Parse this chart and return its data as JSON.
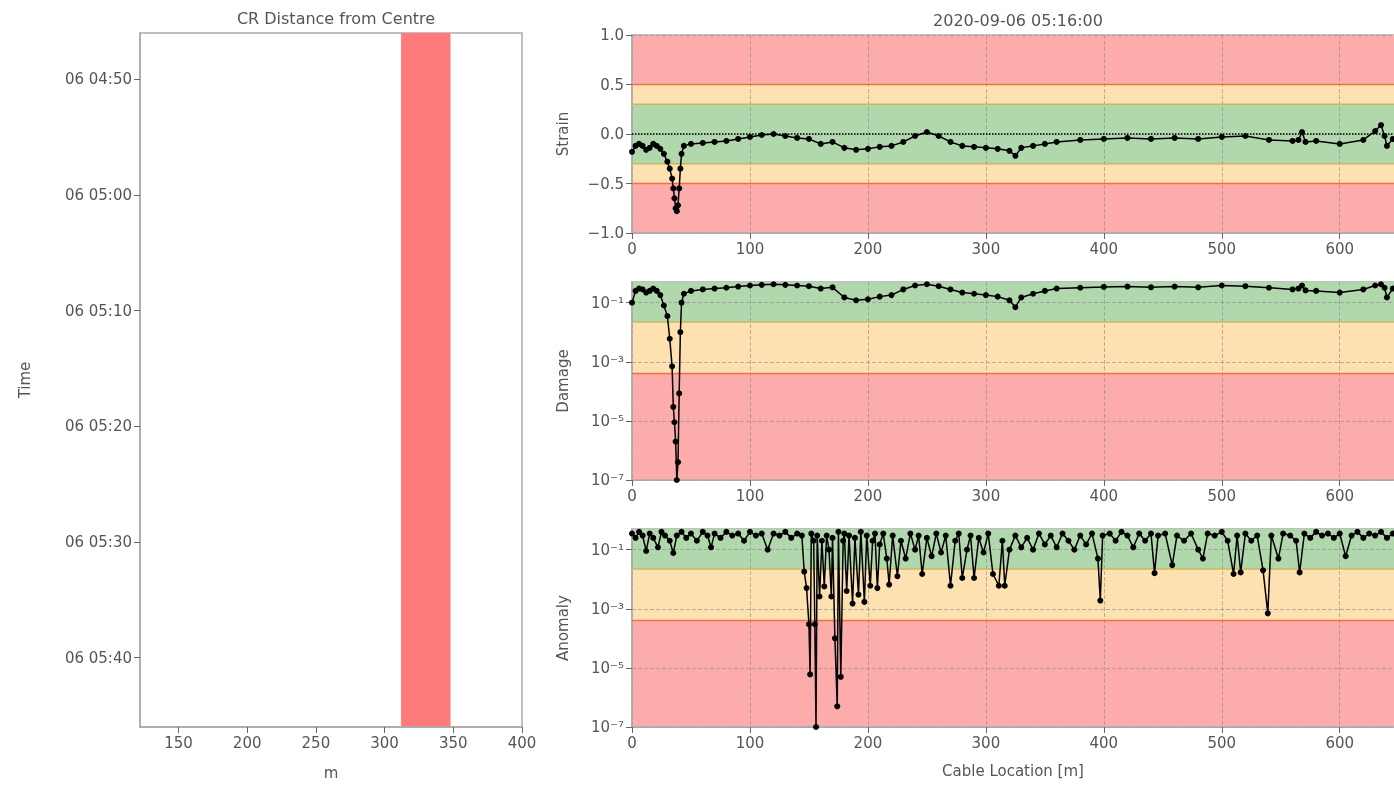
{
  "chart_data": [
    {
      "type": "line",
      "title": "CR Distance from Centre",
      "xlabel": "m",
      "ylabel": "Time",
      "xlim": [
        122,
        400
      ],
      "xticks": [
        150,
        200,
        250,
        300,
        350,
        400
      ],
      "ylim": [
        "2020-09-06T05:46",
        "2020-09-06T04:46"
      ],
      "yticks": [
        {
          "value": "2020-09-06T04:50",
          "label": "06 04:50"
        },
        {
          "value": "2020-09-06T05:00",
          "label": "06 05:00"
        },
        {
          "value": "2020-09-06T05:10",
          "label": "06 05:10"
        },
        {
          "value": "2020-09-06T05:20",
          "label": "06 05:20"
        },
        {
          "value": "2020-09-06T05:30",
          "label": "06 05:30"
        },
        {
          "value": "2020-09-06T05:40",
          "label": "06 05:40"
        }
      ],
      "bands": [
        {
          "axis": "x",
          "from": 312,
          "to": 348,
          "color": "#ff7b7b"
        }
      ]
    },
    {
      "type": "line",
      "title": "2020-09-06 05:16:00",
      "ylabel": "Strain",
      "color": "#000000",
      "marker": "circle",
      "grid": true,
      "x": [
        0,
        3,
        6,
        9,
        12,
        15,
        18,
        21,
        24,
        27,
        30,
        32,
        34,
        35,
        36,
        37,
        38,
        39,
        40,
        41,
        42,
        44,
        50,
        60,
        70,
        80,
        90,
        100,
        110,
        120,
        130,
        140,
        150,
        160,
        170,
        180,
        190,
        200,
        210,
        220,
        230,
        240,
        250,
        260,
        270,
        280,
        290,
        300,
        310,
        320,
        325,
        330,
        340,
        350,
        360,
        380,
        400,
        420,
        440,
        460,
        480,
        500,
        520,
        540,
        560,
        565,
        568,
        571,
        580,
        600,
        620,
        630,
        635,
        638,
        640,
        645
      ],
      "values": [
        -0.18,
        -0.12,
        -0.1,
        -0.12,
        -0.16,
        -0.14,
        -0.1,
        -0.12,
        -0.15,
        -0.2,
        -0.28,
        -0.35,
        -0.45,
        -0.55,
        -0.65,
        -0.75,
        -0.78,
        -0.72,
        -0.55,
        -0.35,
        -0.2,
        -0.12,
        -0.1,
        -0.09,
        -0.08,
        -0.07,
        -0.05,
        -0.03,
        -0.01,
        0,
        -0.02,
        -0.04,
        -0.05,
        -0.1,
        -0.08,
        -0.14,
        -0.16,
        -0.15,
        -0.13,
        -0.12,
        -0.08,
        -0.02,
        0.02,
        -0.02,
        -0.08,
        -0.12,
        -0.13,
        -0.14,
        -0.15,
        -0.17,
        -0.22,
        -0.14,
        -0.12,
        -0.1,
        -0.08,
        -0.06,
        -0.05,
        -0.04,
        -0.05,
        -0.04,
        -0.05,
        -0.03,
        -0.02,
        -0.06,
        -0.07,
        -0.06,
        0.02,
        -0.08,
        -0.07,
        -0.1,
        -0.06,
        0.03,
        0.09,
        -0.02,
        -0.12,
        -0.05
      ],
      "xlim": [
        0,
        646
      ],
      "xticks": [
        0,
        100,
        200,
        300,
        400,
        500,
        600
      ],
      "ylim": [
        -1,
        1
      ],
      "yticks": [
        {
          "value": -1,
          "label": "−1.0"
        },
        {
          "value": -0.5,
          "label": "−0.5"
        },
        {
          "value": 0,
          "label": "0.0"
        },
        0.5,
        {
          "value": 1,
          "label": "1.0"
        }
      ],
      "bands": [
        {
          "axis": "y",
          "from": 0.5,
          "to": 1,
          "color": "#fdacac"
        },
        {
          "axis": "y",
          "from": 0.3,
          "to": 0.5,
          "color": "#fde1b0"
        },
        {
          "axis": "y",
          "from": -0.3,
          "to": 0.3,
          "color": "#b1d8ac"
        },
        {
          "axis": "y",
          "from": -0.5,
          "to": -0.3,
          "color": "#fde1b0"
        },
        {
          "axis": "y",
          "from": -1,
          "to": -0.5,
          "color": "#fdacac"
        }
      ],
      "ref_lines": [
        {
          "axis": "y",
          "value": 0.5,
          "color": "#f0704a",
          "line_style": "solid"
        },
        {
          "axis": "y",
          "value": 0.3,
          "color": "#c9b860",
          "line_style": "solid"
        },
        {
          "axis": "y",
          "value": 0,
          "color": "#000000",
          "line_style": "dotted"
        },
        {
          "axis": "y",
          "value": -0.3,
          "color": "#c9b860",
          "line_style": "solid"
        },
        {
          "axis": "y",
          "value": -0.5,
          "color": "#f0704a",
          "line_style": "solid"
        }
      ]
    },
    {
      "type": "line",
      "ylabel": "Damage",
      "color": "#000000",
      "marker": "circle",
      "grid": true,
      "log": true,
      "x": [
        0,
        3,
        6,
        9,
        12,
        15,
        18,
        21,
        24,
        27,
        30,
        32,
        34,
        35,
        36,
        37,
        38,
        39,
        40,
        41,
        42,
        44,
        50,
        60,
        70,
        80,
        90,
        100,
        110,
        120,
        130,
        140,
        150,
        160,
        170,
        180,
        190,
        200,
        210,
        220,
        230,
        240,
        250,
        260,
        270,
        280,
        290,
        300,
        310,
        320,
        325,
        330,
        340,
        350,
        360,
        380,
        400,
        420,
        440,
        460,
        480,
        500,
        520,
        540,
        560,
        565,
        568,
        571,
        580,
        600,
        620,
        630,
        635,
        638,
        640,
        645
      ],
      "values": [
        0.1,
        0.25,
        0.3,
        0.28,
        0.22,
        0.25,
        0.3,
        0.25,
        0.18,
        0.08,
        0.035,
        0.006,
        0.0007,
        3e-05,
        9e-06,
        2e-06,
        1e-07,
        4e-07,
        8.5e-05,
        0.01,
        0.1,
        0.2,
        0.25,
        0.28,
        0.3,
        0.32,
        0.35,
        0.38,
        0.4,
        0.42,
        0.4,
        0.38,
        0.36,
        0.3,
        0.33,
        0.15,
        0.12,
        0.13,
        0.16,
        0.18,
        0.28,
        0.38,
        0.42,
        0.36,
        0.28,
        0.22,
        0.2,
        0.18,
        0.16,
        0.12,
        0.07,
        0.15,
        0.2,
        0.25,
        0.3,
        0.32,
        0.34,
        0.35,
        0.33,
        0.35,
        0.33,
        0.38,
        0.36,
        0.32,
        0.28,
        0.3,
        0.38,
        0.26,
        0.25,
        0.22,
        0.28,
        0.38,
        0.42,
        0.32,
        0.15,
        0.3
      ],
      "xlim": [
        0,
        646
      ],
      "xticks": [
        0,
        100,
        200,
        300,
        400,
        500,
        600
      ],
      "ylim": [
        1e-07,
        0.5
      ],
      "yticks": [
        {
          "value": 1e-07,
          "label": "10⁻⁷"
        },
        {
          "value": 1e-05,
          "label": "10⁻⁵"
        },
        {
          "value": 0.001,
          "label": "10⁻³"
        },
        {
          "value": 0.1,
          "label": "10⁻¹"
        }
      ],
      "bands": [
        {
          "axis": "y",
          "from": 0.022,
          "to": 0.5,
          "color": "#b1d8ac"
        },
        {
          "axis": "y",
          "from": 0.0004,
          "to": 0.022,
          "color": "#fde1b0"
        },
        {
          "axis": "y",
          "from": 1e-07,
          "to": 0.0004,
          "color": "#fdacac"
        }
      ],
      "ref_lines": [
        {
          "axis": "y",
          "value": 0.022,
          "color": "#c9b860",
          "line_style": "solid"
        },
        {
          "axis": "y",
          "value": 0.0004,
          "color": "#f0704a",
          "line_style": "solid"
        }
      ]
    },
    {
      "type": "line",
      "ylabel": "Anomaly",
      "xlabel": "Cable Location [m]",
      "color": "#000000",
      "marker": "circle",
      "grid": true,
      "log": true,
      "x": [
        0,
        3,
        6,
        9,
        12,
        15,
        18,
        22,
        25,
        28,
        32,
        35,
        38,
        42,
        46,
        50,
        55,
        60,
        64,
        67,
        70,
        75,
        80,
        85,
        90,
        95,
        100,
        105,
        110,
        115,
        120,
        125,
        130,
        135,
        140,
        144,
        146,
        148,
        150,
        151,
        152,
        154,
        155,
        156,
        157,
        159,
        161,
        163,
        165,
        167,
        169,
        170,
        172,
        174,
        175,
        177,
        179,
        180,
        182,
        184,
        187,
        189,
        192,
        194,
        197,
        199,
        202,
        204,
        206,
        208,
        210,
        213,
        216,
        218,
        221,
        225,
        228,
        232,
        236,
        240,
        243,
        246,
        250,
        254,
        258,
        262,
        266,
        270,
        274,
        277,
        280,
        284,
        287,
        290,
        294,
        298,
        302,
        306,
        311,
        314,
        316,
        320,
        325,
        330,
        335,
        340,
        345,
        350,
        355,
        360,
        365,
        370,
        375,
        380,
        385,
        390,
        395,
        397,
        399,
        405,
        410,
        415,
        420,
        425,
        430,
        435,
        440,
        443,
        446,
        452,
        458,
        462,
        468,
        474,
        480,
        484,
        488,
        494,
        500,
        505,
        510,
        513,
        516,
        520,
        525,
        530,
        535,
        539,
        542,
        548,
        552,
        558,
        563,
        566,
        570,
        575,
        580,
        585,
        590,
        595,
        600,
        605,
        610,
        615,
        620,
        625,
        630,
        635,
        640,
        645
      ],
      "values": [
        0.35,
        0.25,
        0.4,
        0.3,
        0.09,
        0.35,
        0.25,
        0.12,
        0.4,
        0.3,
        0.2,
        0.077,
        0.3,
        0.4,
        0.25,
        0.35,
        0.2,
        0.4,
        0.3,
        0.12,
        0.35,
        0.25,
        0.4,
        0.3,
        0.35,
        0.2,
        0.4,
        0.3,
        0.35,
        0.1,
        0.35,
        0.3,
        0.4,
        0.25,
        0.35,
        0.3,
        0.018,
        0.005,
        0.0003,
        6e-06,
        0.35,
        0.2,
        0.0003,
        1e-07,
        0.3,
        0.0026,
        0.2,
        0.0057,
        0.3,
        0.1,
        0.0026,
        0.25,
        0.0001,
        5e-07,
        0.4,
        5e-06,
        0.2,
        0.35,
        0.004,
        0.3,
        0.0015,
        0.25,
        0.003,
        0.4,
        0.0017,
        0.3,
        0.006,
        0.2,
        0.35,
        0.005,
        0.15,
        0.35,
        0.05,
        0.0066,
        0.3,
        0.0126,
        0.2,
        0.05,
        0.35,
        0.1,
        0.3,
        0.015,
        0.25,
        0.06,
        0.35,
        0.08,
        0.3,
        0.006,
        0.2,
        0.35,
        0.011,
        0.1,
        0.3,
        0.011,
        0.25,
        0.08,
        0.35,
        0.015,
        0.006,
        0.2,
        0.006,
        0.1,
        0.3,
        0.12,
        0.25,
        0.1,
        0.35,
        0.15,
        0.3,
        0.12,
        0.35,
        0.2,
        0.1,
        0.3,
        0.15,
        0.35,
        0.05,
        0.0019,
        0.3,
        0.35,
        0.2,
        0.4,
        0.3,
        0.12,
        0.35,
        0.2,
        0.35,
        0.016,
        0.3,
        0.35,
        0.03,
        0.3,
        0.2,
        0.35,
        0.1,
        0.05,
        0.35,
        0.3,
        0.4,
        0.2,
        0.015,
        0.3,
        0.017,
        0.35,
        0.2,
        0.3,
        0.02,
        0.0007,
        0.3,
        0.05,
        0.35,
        0.3,
        0.2,
        0.017,
        0.35,
        0.25,
        0.4,
        0.3,
        0.35,
        0.25,
        0.35,
        0.06,
        0.3,
        0.4,
        0.25,
        0.35,
        0.3,
        0.4,
        0.25,
        0.35
      ],
      "xlim": [
        0,
        646
      ],
      "xticks": [
        0,
        100,
        200,
        300,
        400,
        500,
        600
      ],
      "ylim": [
        1e-07,
        0.5
      ],
      "yticks": [
        {
          "value": 1e-07,
          "label": "10⁻⁷"
        },
        {
          "value": 1e-05,
          "label": "10⁻⁵"
        },
        {
          "value": 0.001,
          "label": "10⁻³"
        },
        {
          "value": 0.1,
          "label": "10⁻¹"
        }
      ],
      "bands": [
        {
          "axis": "y",
          "from": 0.022,
          "to": 0.5,
          "color": "#b1d8ac"
        },
        {
          "axis": "y",
          "from": 0.0004,
          "to": 0.022,
          "color": "#fde1b0"
        },
        {
          "axis": "y",
          "from": 1e-07,
          "to": 0.0004,
          "color": "#fdacac"
        }
      ],
      "ref_lines": [
        {
          "axis": "y",
          "value": 0.022,
          "color": "#c9b860",
          "line_style": "solid"
        },
        {
          "axis": "y",
          "value": 0.0004,
          "color": "#f0704a",
          "line_style": "solid"
        }
      ]
    }
  ]
}
